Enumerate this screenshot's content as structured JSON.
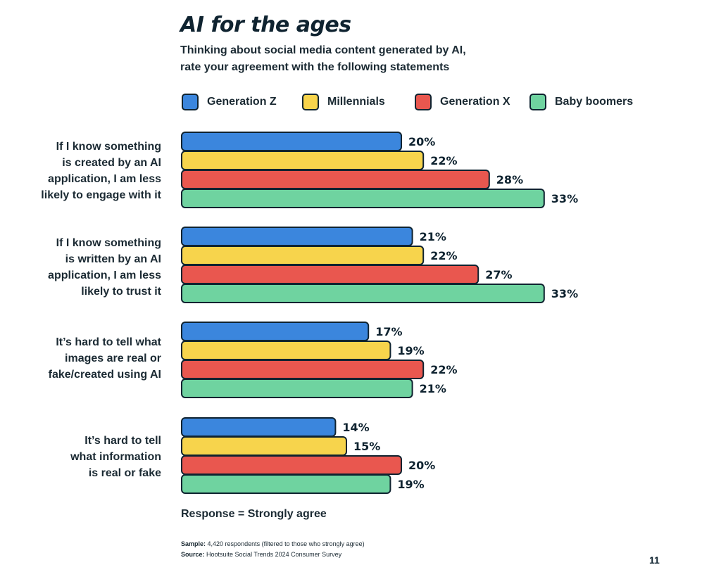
{
  "header": {
    "title": "AI for the ages",
    "subtitle_lines": [
      "Thinking about social media content generated by AI,",
      "rate your agreement with the following statements"
    ]
  },
  "legend": [
    {
      "label": "Generation Z",
      "color": "#3b86dd"
    },
    {
      "label": "Millennials",
      "color": "#f7d44c"
    },
    {
      "label": "Generation X",
      "color": "#e9574f"
    },
    {
      "label": "Baby boomers",
      "color": "#6fd3a0"
    }
  ],
  "chart_data": {
    "type": "bar",
    "orientation": "horizontal",
    "unit": "%",
    "categories": [
      [
        "If I know something",
        "is created by an AI",
        "application, I am less",
        "likely to engage with it"
      ],
      [
        "If I know something",
        "is written by an AI",
        "application, I am less",
        "likely to trust it"
      ],
      [
        "It’s hard to tell what",
        "images are real or",
        "fake/created using AI"
      ],
      [
        "It’s hard to tell",
        "what information",
        "is real or fake"
      ]
    ],
    "series": [
      {
        "name": "Generation Z",
        "color": "#3b86dd",
        "values": [
          20,
          21,
          17,
          14
        ]
      },
      {
        "name": "Millennials",
        "color": "#f7d44c",
        "values": [
          22,
          22,
          19,
          15
        ]
      },
      {
        "name": "Generation X",
        "color": "#e9574f",
        "values": [
          28,
          27,
          22,
          20
        ]
      },
      {
        "name": "Baby boomers",
        "color": "#6fd3a0",
        "values": [
          33,
          33,
          21,
          19
        ]
      }
    ],
    "legend_position": "top",
    "grid": false
  },
  "notes": {
    "response": "Response = Strongly agree",
    "sample_label": "Sample:",
    "sample_text": "4,420 respondents (filtered to those who strongly agree)",
    "source_label": "Source:",
    "source_text": "Hootsuite Social Trends 2024 Consumer Survey"
  },
  "page_number": "11"
}
